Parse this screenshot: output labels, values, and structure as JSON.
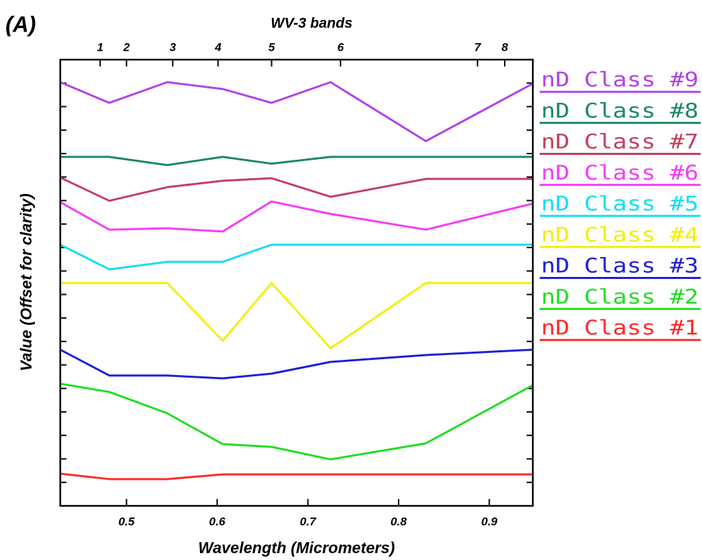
{
  "chart_data": {
    "type": "line",
    "title": "(A)",
    "x2_label": "WV-3 bands",
    "x_label": "Wavelength (Micrometers)",
    "y_label": "Value (Offset for clarity)",
    "x": [
      0.427,
      0.481,
      0.545,
      0.606,
      0.66,
      0.725,
      0.83,
      0.948
    ],
    "xlim": [
      0.427,
      0.948
    ],
    "xticks": [
      0.5,
      0.6,
      0.7,
      0.8,
      0.9
    ],
    "x2ticks": [
      {
        "value": 0.471,
        "label": "1"
      },
      {
        "value": 0.5,
        "label": "2"
      },
      {
        "value": 0.551,
        "label": "3"
      },
      {
        "value": 0.601,
        "label": "4"
      },
      {
        "value": 0.66,
        "label": "5"
      },
      {
        "value": 0.736,
        "label": "6"
      },
      {
        "value": 0.887,
        "label": "7"
      },
      {
        "value": 0.917,
        "label": "8"
      }
    ],
    "ylim": [
      0,
      19
    ],
    "yticks": [
      0,
      1,
      2,
      3,
      4,
      5,
      6,
      7,
      8,
      9,
      10,
      11,
      12,
      13,
      14,
      15,
      16,
      17,
      18,
      19
    ],
    "legend": "right",
    "series": [
      {
        "name": "nD Class #9",
        "color": "#b043e6",
        "values": [
          18.04,
          17.16,
          18.04,
          17.75,
          17.16,
          18.04,
          15.53,
          17.98
        ]
      },
      {
        "name": "nD Class #8",
        "color": "#1b8a62",
        "values": [
          14.86,
          14.86,
          14.51,
          14.86,
          14.57,
          14.86,
          14.86,
          14.86
        ]
      },
      {
        "name": "nD Class #7",
        "color": "#c2405e",
        "values": [
          13.98,
          12.99,
          13.57,
          13.84,
          13.95,
          13.16,
          13.92,
          13.92
        ]
      },
      {
        "name": "nD Class #6",
        "color": "#f53cf5",
        "values": [
          12.93,
          11.76,
          11.82,
          11.68,
          12.96,
          12.43,
          11.76,
          12.87
        ]
      },
      {
        "name": "nD Class #5",
        "color": "#12dff2",
        "values": [
          11.12,
          10.07,
          10.39,
          10.39,
          11.12,
          11.12,
          11.12,
          11.12
        ]
      },
      {
        "name": "nD Class #4",
        "color": "#f2f000",
        "values": [
          9.49,
          9.49,
          9.49,
          7.03,
          9.49,
          6.71,
          9.49,
          9.49
        ]
      },
      {
        "name": "nD Class #3",
        "color": "#1f1fd6",
        "values": [
          6.65,
          5.55,
          5.55,
          5.43,
          5.63,
          6.13,
          6.42,
          6.65
        ]
      },
      {
        "name": "nD Class #2",
        "color": "#22dd22",
        "values": [
          5.2,
          4.85,
          3.94,
          2.63,
          2.51,
          1.98,
          2.66,
          5.14
        ]
      },
      {
        "name": "nD Class #1",
        "color": "#ff2a2a",
        "values": [
          1.37,
          1.14,
          1.14,
          1.34,
          1.34,
          1.34,
          1.34,
          1.34
        ]
      }
    ]
  }
}
